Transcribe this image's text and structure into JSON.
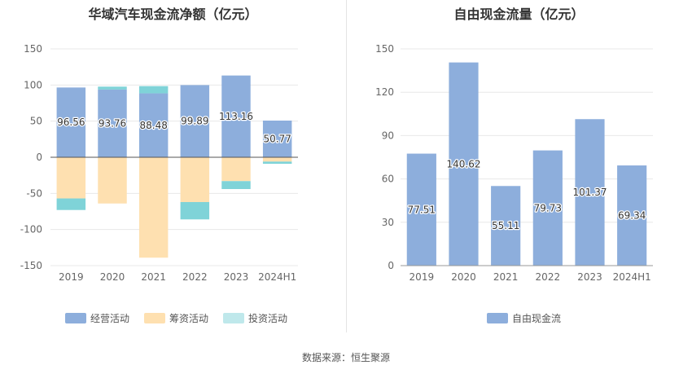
{
  "source_label": "数据来源：恒生聚源",
  "colors": {
    "operating": "#8DAEDC",
    "financing": "#FEE0B0",
    "investing": "#7FD3D8",
    "free_cash_flow": "#8DAEDC"
  },
  "chart_data": [
    {
      "type": "bar",
      "stacked": true,
      "title": "华域汽车现金流净额（亿元）",
      "categories": [
        "2019",
        "2020",
        "2021",
        "2022",
        "2023",
        "2024H1"
      ],
      "ylim": [
        -150,
        150
      ],
      "yticks": [
        150,
        100,
        50,
        0,
        -50,
        -100,
        -150
      ],
      "series": [
        {
          "name": "经营活动",
          "color": "#8DAEDC",
          "values": [
            96.56,
            93.76,
            88.48,
            99.89,
            113.16,
            50.77
          ],
          "labels": [
            "96.56",
            "93.76",
            "88.48",
            "99.89",
            "113.16",
            "50.77"
          ]
        },
        {
          "name": "筹资活动",
          "color": "#FEE0B0",
          "values": [
            -57,
            -64,
            -139,
            -62,
            -33,
            -6
          ]
        },
        {
          "name": "投资活动",
          "color": "#7FD3D8",
          "values": [
            -16,
            4,
            10,
            -24,
            -11,
            -3
          ]
        }
      ],
      "legend": "bottom",
      "grid": true
    },
    {
      "type": "bar",
      "title": "自由现金流量（亿元）",
      "categories": [
        "2019",
        "2020",
        "2021",
        "2022",
        "2023",
        "2024H1"
      ],
      "ylim": [
        0,
        150
      ],
      "yticks": [
        150,
        120,
        90,
        60,
        30,
        0
      ],
      "series": [
        {
          "name": "自由现金流",
          "color": "#8DAEDC",
          "values": [
            77.51,
            140.62,
            55.11,
            79.73,
            101.37,
            69.34
          ],
          "labels": [
            "77.51",
            "140.62",
            "55.11",
            "79.73",
            "101.37",
            "69.34"
          ]
        }
      ],
      "legend": "bottom",
      "grid": true
    }
  ]
}
